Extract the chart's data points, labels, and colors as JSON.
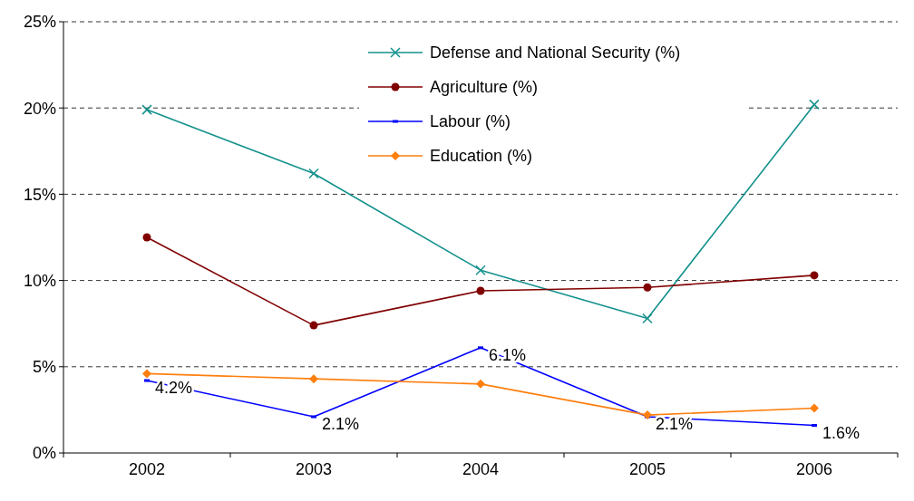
{
  "chart_data": {
    "type": "line",
    "categories": [
      "2002",
      "2003",
      "2004",
      "2005",
      "2006"
    ],
    "series": [
      {
        "name": "Defense and National Security (%)",
        "color": "#14918c",
        "marker": "cross",
        "values": [
          19.9,
          16.2,
          10.6,
          7.8,
          20.2
        ]
      },
      {
        "name": "Agriculture (%)",
        "color": "#800000",
        "marker": "circle",
        "values": [
          12.5,
          7.4,
          9.4,
          9.6,
          10.3
        ]
      },
      {
        "name": "Labour (%)",
        "color": "#0000ff",
        "marker": "square",
        "values": [
          4.2,
          2.1,
          6.1,
          2.1,
          1.6
        ],
        "value_labels": [
          "4.2%",
          "2.1%",
          "6.1%",
          "2.1%",
          "1.6%"
        ]
      },
      {
        "name": "Education (%)",
        "color": "#ff7f0e",
        "marker": "diamond",
        "values": [
          4.6,
          4.3,
          4.0,
          2.2,
          2.6
        ]
      }
    ],
    "ylim": [
      0,
      25
    ],
    "yticks": [
      {
        "value": 0,
        "label": "0%"
      },
      {
        "value": 5,
        "label": "5%"
      },
      {
        "value": 10,
        "label": "10%"
      },
      {
        "value": 15,
        "label": "15%"
      },
      {
        "value": 20,
        "label": "20%"
      },
      {
        "value": 25,
        "label": "25%"
      }
    ],
    "grid": "y",
    "legend": "top right",
    "line_style": "solid"
  }
}
